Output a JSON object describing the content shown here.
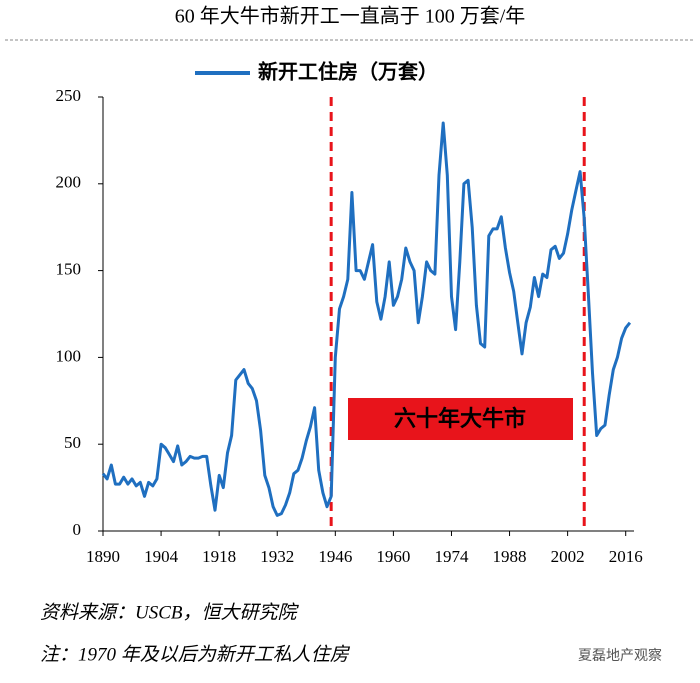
{
  "chart_data": {
    "type": "line",
    "title": "60 年大牛市新开工一直高于 100 万套/年",
    "x": [
      1890,
      1891,
      1892,
      1893,
      1894,
      1895,
      1896,
      1897,
      1898,
      1899,
      1900,
      1901,
      1902,
      1903,
      1904,
      1905,
      1906,
      1907,
      1908,
      1909,
      1910,
      1911,
      1912,
      1913,
      1914,
      1915,
      1916,
      1917,
      1918,
      1919,
      1920,
      1921,
      1922,
      1923,
      1924,
      1925,
      1926,
      1927,
      1928,
      1929,
      1930,
      1931,
      1932,
      1933,
      1934,
      1935,
      1936,
      1937,
      1938,
      1939,
      1940,
      1941,
      1942,
      1943,
      1944,
      1945,
      1946,
      1947,
      1948,
      1949,
      1950,
      1951,
      1952,
      1953,
      1954,
      1955,
      1956,
      1957,
      1958,
      1959,
      1960,
      1961,
      1962,
      1963,
      1964,
      1965,
      1966,
      1967,
      1968,
      1969,
      1970,
      1971,
      1972,
      1973,
      1974,
      1975,
      1976,
      1977,
      1978,
      1979,
      1980,
      1981,
      1982,
      1983,
      1984,
      1985,
      1986,
      1987,
      1988,
      1989,
      1990,
      1991,
      1992,
      1993,
      1994,
      1995,
      1996,
      1997,
      1998,
      1999,
      2000,
      2001,
      2002,
      2003,
      2004,
      2005,
      2006,
      2007,
      2008,
      2009,
      2010,
      2011,
      2012,
      2013,
      2014,
      2015,
      2016,
      2017
    ],
    "series": [
      {
        "name": "新开工住房（万套）",
        "color": "#1f6fc0",
        "values": [
          33,
          30,
          38,
          27,
          27,
          31,
          27,
          30,
          26,
          28,
          20,
          28,
          26,
          30,
          50,
          48,
          44,
          40,
          49,
          38,
          40,
          43,
          42,
          42,
          43,
          43,
          26,
          12,
          32,
          25,
          45,
          55,
          87,
          90,
          93,
          85,
          82,
          75,
          58,
          32,
          25,
          14,
          9,
          10,
          15,
          22,
          33,
          35,
          42,
          52,
          60,
          71,
          35,
          22,
          14,
          20,
          100,
          128,
          135,
          145,
          195,
          150,
          150,
          145,
          155,
          165,
          132,
          122,
          135,
          155,
          130,
          135,
          145,
          163,
          155,
          150,
          120,
          135,
          155,
          150,
          148,
          205,
          235,
          205,
          135,
          116,
          155,
          200,
          202,
          175,
          130,
          108,
          106,
          170,
          174,
          174,
          181,
          163,
          149,
          138,
          120,
          102,
          120,
          129,
          146,
          135,
          148,
          146,
          162,
          164,
          157,
          160,
          171,
          185,
          196,
          207,
          180,
          136,
          91,
          55,
          59,
          61,
          78,
          93,
          100,
          111,
          117,
          120
        ]
      }
    ],
    "xlim": [
      1890,
      2018
    ],
    "xticks": [
      1890,
      1904,
      1918,
      1932,
      1946,
      1960,
      1974,
      1988,
      2002,
      2016
    ],
    "ylim": [
      0,
      250
    ],
    "yticks": [
      0,
      50,
      100,
      150,
      200,
      250
    ],
    "vlines": [
      1945,
      2006
    ],
    "vline_color": "#e8141b",
    "annotation": "六十年大牛市",
    "annotation_color": "#e8141b",
    "legend": "top",
    "source": "资料来源：USCB，恒大研究院",
    "note": "注：1970 年及以后为新开工私人住房",
    "watermark": "夏磊地产观察"
  }
}
